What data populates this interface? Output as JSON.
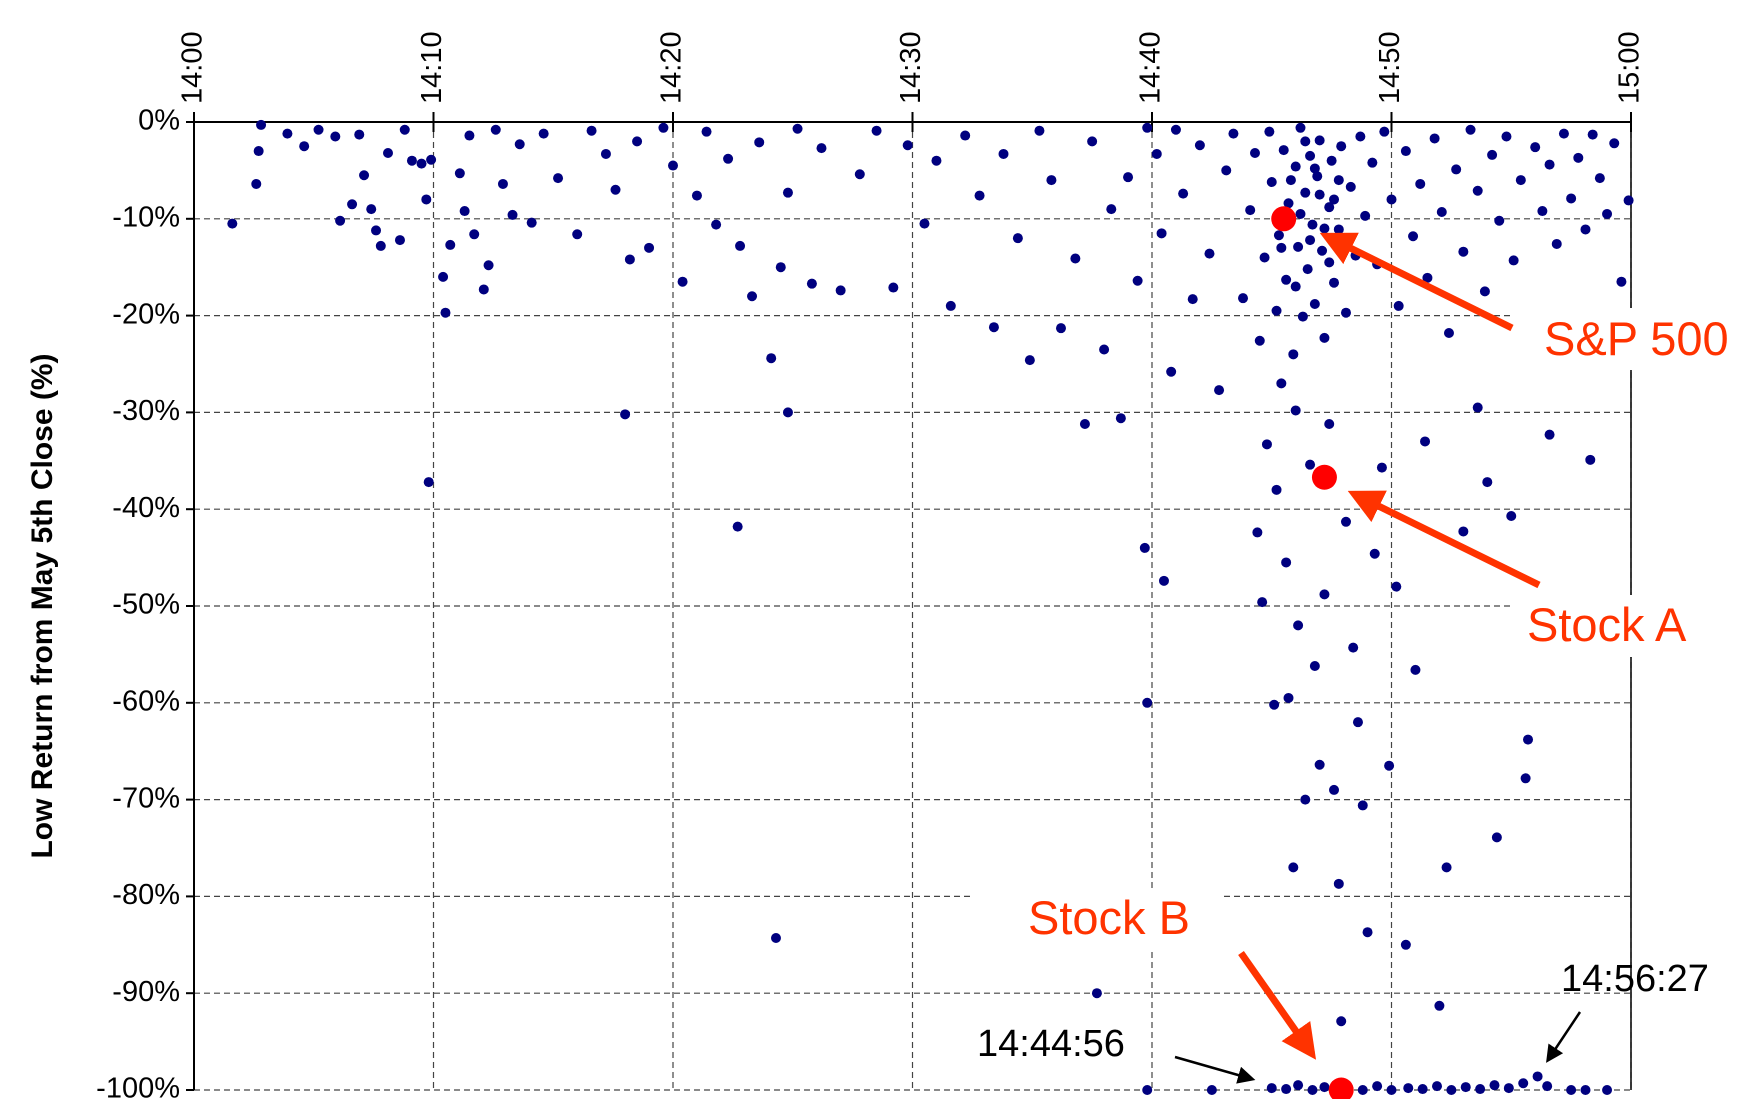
{
  "chart_data": {
    "type": "scatter",
    "y_label": "Low Return from May 5th Close (%)",
    "xlim": [
      0,
      60
    ],
    "xticks": [
      {
        "value": 0,
        "label": "14:00"
      },
      {
        "value": 10,
        "label": "14:10"
      },
      {
        "value": 20,
        "label": "14:20"
      },
      {
        "value": 30,
        "label": "14:30"
      },
      {
        "value": 40,
        "label": "14:40"
      },
      {
        "value": 50,
        "label": "14:50"
      },
      {
        "value": 60,
        "label": "15:00"
      }
    ],
    "ylim": [
      -100,
      0
    ],
    "yticks": [
      {
        "value": 0,
        "label": "0%"
      },
      {
        "value": -10,
        "label": "-10%"
      },
      {
        "value": -20,
        "label": "-20%"
      },
      {
        "value": -30,
        "label": "-30%"
      },
      {
        "value": -40,
        "label": "-40%"
      },
      {
        "value": -50,
        "label": "-50%"
      },
      {
        "value": -60,
        "label": "-60%"
      },
      {
        "value": -70,
        "label": "-70%"
      },
      {
        "value": -80,
        "label": "-80%"
      },
      {
        "value": -90,
        "label": "-90%"
      },
      {
        "value": -100,
        "label": "-100%"
      }
    ],
    "grid": true,
    "annotations": [
      "14:44:56",
      "14:56:27"
    ],
    "series": [
      {
        "color": "#00007f",
        "x": [
          1.6,
          2.6,
          2.7,
          2.8,
          3.9,
          4.6,
          5.2,
          5.9,
          6.1,
          6.6,
          6.9,
          7.1,
          7.4,
          7.6,
          7.8,
          8.1,
          8.6,
          8.8,
          9.1,
          9.5,
          9.7,
          9.9,
          10.4,
          10.5,
          10.7,
          11.1,
          11.3,
          11.5,
          11.7,
          12.1,
          12.3,
          12.6,
          12.9,
          13.3,
          13.6,
          14.1,
          14.6,
          15.2,
          16,
          16.6,
          17.2,
          17.6,
          18.2,
          18.5,
          19,
          19.6,
          20,
          20.4,
          21,
          21.4,
          21.8,
          22.3,
          22.8,
          23.3,
          23.6,
          24.1,
          24.5,
          24.8,
          25.2,
          25.8,
          26.2,
          27,
          27.8,
          28.5,
          29.2,
          29.8,
          30.5,
          31,
          31.6,
          32.2,
          32.8,
          33.4,
          33.8,
          34.4,
          34.9,
          35.3,
          35.8,
          36.2,
          36.8,
          37.2,
          37.5,
          38,
          38.3,
          38.7,
          39,
          39.4,
          39.8,
          40.2,
          40.4,
          40.8,
          41,
          41.3,
          41.7,
          42,
          42.4,
          42.8,
          43.1,
          43.4,
          43.8,
          44.1,
          44.3,
          44.5,
          44.7,
          44.9,
          45,
          45.2,
          45.3,
          45.5,
          45.6,
          45.7,
          45.9,
          46,
          46.1,
          46.2,
          46.3,
          46.4,
          46.5,
          46.6,
          46.7,
          46.8,
          46.9,
          47,
          47.1,
          47.2,
          47.4,
          47.5,
          47.6,
          47.8,
          47.9,
          48.1,
          48.3,
          48.5,
          48.7,
          48.9,
          45.4,
          45.8,
          46.2,
          46.6,
          47,
          47.4,
          47.8,
          46,
          46.8,
          47.6,
          45.6,
          46.4,
          47.2,
          49.2,
          49.4,
          49.7,
          50,
          50.3,
          50.6,
          50.9,
          51.2,
          51.5,
          51.8,
          52.1,
          52.4,
          52.7,
          53,
          53.3,
          53.6,
          53.9,
          54.2,
          54.5,
          54.8,
          55.1,
          55.4,
          55.7,
          56,
          56.3,
          56.6,
          56.9,
          57.2,
          57.5,
          57.8,
          58.1,
          58.4,
          58.7,
          59,
          59.3,
          59.6,
          59.9,
          44.4,
          44.6,
          44.8,
          45.1,
          45.2,
          45.4,
          45.6,
          45.7,
          45.9,
          46.0,
          46.1,
          46.4,
          46.6,
          46.8,
          47.0,
          47.2,
          47.4,
          47.6,
          47.8,
          47.9,
          48.1,
          48.4,
          48.6,
          48.8,
          49,
          49.3,
          49.6,
          49.9,
          50.2,
          50.6,
          51,
          51.4,
          52,
          52.3,
          53,
          53.6,
          54,
          54.4,
          55,
          55.7,
          55.6,
          56.6,
          58.3,
          9.8,
          22.7,
          24.3,
          18,
          24.8,
          39.8,
          39.7,
          37.7,
          40.5,
          39.8,
          42.5,
          45,
          45.6,
          46.1,
          46.7,
          47.2,
          48.2,
          48.8,
          49.4,
          50,
          50.7,
          51.3,
          51.9,
          52.5,
          53.1,
          53.7,
          54.3,
          54.9,
          55.5,
          56.1,
          56.5,
          57.5,
          58.1,
          59
        ],
        "values": [
          -10.5,
          -6.4,
          -3,
          -0.3,
          -1.2,
          -2.5,
          -0.8,
          -1.5,
          -10.2,
          -8.5,
          -1.3,
          -5.5,
          -9,
          -11.2,
          -12.8,
          -3.2,
          -12.2,
          -0.8,
          -4,
          -4.3,
          -8,
          -3.9,
          -16,
          -19.7,
          -12.7,
          -5.3,
          -9.2,
          -1.4,
          -11.6,
          -17.3,
          -14.8,
          -0.8,
          -6.4,
          -9.6,
          -2.3,
          -10.4,
          -1.2,
          -5.8,
          -11.6,
          -0.9,
          -3.3,
          -7,
          -14.2,
          -2,
          -13,
          -0.6,
          -4.5,
          -16.5,
          -7.6,
          -1,
          -10.6,
          -3.8,
          -12.8,
          -18,
          -2.1,
          -24.4,
          -15,
          -7.3,
          -0.7,
          -16.7,
          -2.7,
          -17.4,
          -5.4,
          -0.9,
          -17.1,
          -2.4,
          -10.5,
          -4,
          -19,
          -1.4,
          -7.6,
          -21.2,
          -3.3,
          -12,
          -24.6,
          -0.9,
          -6,
          -21.3,
          -14.1,
          -31.2,
          -2,
          -23.5,
          -9,
          -30.6,
          -5.7,
          -16.4,
          -0.6,
          -3.3,
          -11.5,
          -25.8,
          -0.8,
          -7.4,
          -18.3,
          -2.4,
          -13.6,
          -27.7,
          -5,
          -1.2,
          -18.2,
          -9.1,
          -3.2,
          -22.6,
          -14,
          -1,
          -6.2,
          -19.5,
          -11.7,
          -2.9,
          -16.3,
          -8.4,
          -24,
          -4.6,
          -12.9,
          -0.6,
          -20.1,
          -7.3,
          -15.2,
          -3.5,
          -10.6,
          -18.8,
          -5.6,
          -1.9,
          -13.3,
          -22.3,
          -8.8,
          -4,
          -16.6,
          -11.1,
          -2.5,
          -19.7,
          -6.7,
          -13.8,
          -1.5,
          -9.7,
          -13,
          -6,
          -9.5,
          -12.2,
          -7.5,
          -14.5,
          -6,
          -17,
          -4.8,
          -8,
          -10.5,
          -2,
          -11,
          -4.2,
          -14.7,
          -1,
          -8,
          -19,
          -3,
          -11.8,
          -6.4,
          -16.1,
          -1.7,
          -9.3,
          -21.8,
          -4.9,
          -13.4,
          -0.8,
          -7.1,
          -17.5,
          -3.4,
          -10.2,
          -1.5,
          -14.3,
          -6,
          -20.6,
          -2.6,
          -9.2,
          -4.4,
          -12.6,
          -1.2,
          -7.9,
          -3.7,
          -11.1,
          -1.3,
          -5.8,
          -9.5,
          -2.2,
          -16.5,
          -8.1,
          -42.4,
          -49.6,
          -33.3,
          -60.2,
          -38,
          -27,
          -45.5,
          -59.5,
          -77,
          -29.8,
          -52,
          -70,
          -35.4,
          -56.2,
          -66.4,
          -48.8,
          -31.2,
          -69,
          -78.7,
          -92.9,
          -41.3,
          -54.3,
          -62,
          -70.6,
          -83.7,
          -44.6,
          -35.7,
          -66.5,
          -48,
          -85,
          -56.6,
          -33,
          -91.3,
          -77,
          -42.3,
          -29.5,
          -37.2,
          -73.9,
          -40.7,
          -63.8,
          -67.8,
          -32.3,
          -34.9,
          -37.2,
          -41.8,
          -84.3,
          -30.2,
          -30,
          -60,
          -44,
          -90,
          -47.4,
          -100,
          -100,
          -99.8,
          -99.9,
          -99.5,
          -100,
          -99.7,
          -99.8,
          -100,
          -99.6,
          -100,
          -99.8,
          -99.9,
          -99.6,
          -100,
          -99.7,
          -99.9,
          -99.5,
          -99.8,
          -99.3,
          -98.6,
          -99.6,
          -100,
          -100,
          -100
        ]
      },
      {
        "name": "S&P 500",
        "color": "#ff0000",
        "x": [
          45.5
        ],
        "values": [
          -10
        ]
      },
      {
        "name": "Stock A",
        "color": "#ff0000",
        "x": [
          47.2
        ],
        "values": [
          -36.7
        ]
      },
      {
        "name": "Stock B",
        "color": "#ff0000",
        "x": [
          47.9
        ],
        "values": [
          -100
        ]
      }
    ]
  }
}
